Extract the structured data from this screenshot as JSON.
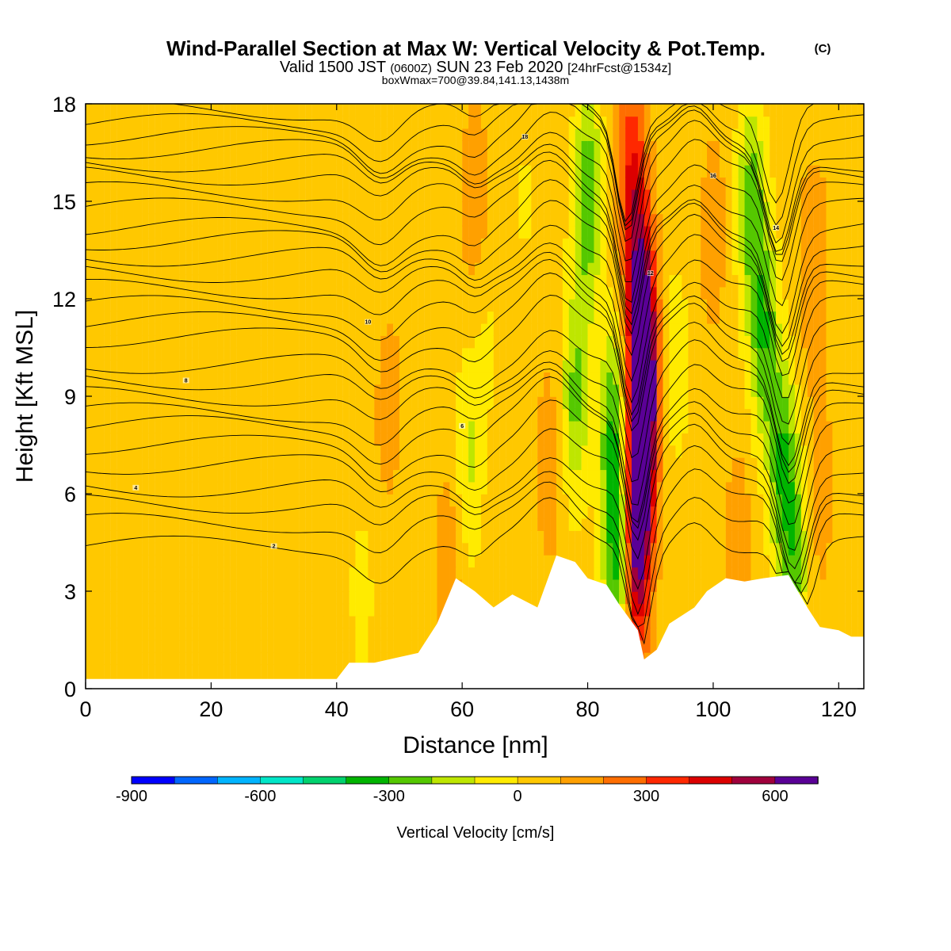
{
  "header": {
    "title": "Wind-Parallel Section at Max W: Vertical Velocity & Pot.Temp.",
    "copyright": "(C)",
    "subtitle_main": "Valid 1500 JST",
    "subtitle_utc": "(0600Z)",
    "subtitle_date": "SUN 23 Feb 2020",
    "subtitle_fcst": "[24hrFcst@1534z]",
    "box_info": "boxWmax=700@39.84,141.13,1438m"
  },
  "chart_data": {
    "type": "heatmap",
    "xlabel": "Distance [nm]",
    "ylabel": "Height [Kft MSL]",
    "xlim": [
      0,
      124
    ],
    "ylim": [
      0,
      18
    ],
    "xticks": [
      "0",
      "20",
      "40",
      "60",
      "80",
      "100",
      "120"
    ],
    "yticks": [
      "0",
      "3",
      "6",
      "9",
      "12",
      "15",
      "18"
    ],
    "xtick_values": [
      0,
      20,
      40,
      60,
      80,
      100,
      120
    ],
    "ytick_values": [
      0,
      3,
      6,
      9,
      12,
      15,
      18
    ],
    "colorbar": {
      "label": "Vertical Velocity [cm/s]",
      "levels": [
        -900,
        -800,
        -700,
        -600,
        -500,
        -400,
        -300,
        -200,
        -100,
        0,
        100,
        200,
        300,
        400,
        500,
        600,
        700
      ],
      "colors": [
        "#0000ff",
        "#0066ff",
        "#00b4ff",
        "#00e6c8",
        "#00d26e",
        "#00b400",
        "#55c800",
        "#bee600",
        "#ffeb00",
        "#ffc800",
        "#ffa000",
        "#ff6e00",
        "#ff2800",
        "#dc0000",
        "#a0003c",
        "#5a0096"
      ],
      "tick_labels": [
        "-900",
        "-600",
        "-300",
        "0",
        "300",
        "600"
      ],
      "tick_values": [
        -900,
        -600,
        -300,
        0,
        300,
        600
      ]
    },
    "background_w": 50,
    "vertical_velocity_features": [
      {
        "x": 36,
        "z": 11,
        "w": -30
      },
      {
        "x": 46,
        "z": 12,
        "w": -60
      },
      {
        "x": 44,
        "z": 3,
        "w": -80
      },
      {
        "x": 48,
        "z": 9,
        "w": 120
      },
      {
        "x": 58,
        "z": 4,
        "w": 130
      },
      {
        "x": 62,
        "z": 15,
        "w": 130
      },
      {
        "x": 61,
        "z": 7,
        "w": -170
      },
      {
        "x": 64,
        "z": 11,
        "w": -70
      },
      {
        "x": 74,
        "z": 7,
        "w": 120
      },
      {
        "x": 70,
        "z": 15,
        "w": -60
      },
      {
        "x": 80,
        "z": 15,
        "w": -350
      },
      {
        "x": 78,
        "z": 9,
        "w": -280
      },
      {
        "x": 84,
        "z": 8,
        "w": -330
      },
      {
        "x": 85,
        "z": 4,
        "w": -440
      },
      {
        "x": 87,
        "z": 16,
        "w": 330
      },
      {
        "x": 88.5,
        "z": 12,
        "w": 480
      },
      {
        "x": 89,
        "z": 9,
        "w": 620
      },
      {
        "x": 88,
        "z": 6,
        "w": 600
      },
      {
        "x": 87.5,
        "z": 3,
        "w": 320
      },
      {
        "x": 94,
        "z": 10,
        "w": -120
      },
      {
        "x": 100,
        "z": 14,
        "w": 110
      },
      {
        "x": 104,
        "z": 4,
        "w": 140
      },
      {
        "x": 106,
        "z": 15,
        "w": -300
      },
      {
        "x": 108,
        "z": 11,
        "w": -330
      },
      {
        "x": 111,
        "z": 7,
        "w": -330
      },
      {
        "x": 113,
        "z": 4,
        "w": -260
      },
      {
        "x": 116,
        "z": 13,
        "w": 150
      },
      {
        "x": 117,
        "z": 6,
        "w": 120
      },
      {
        "x": 121,
        "z": 3,
        "w": -50
      }
    ],
    "terrain": [
      [
        0,
        0.3
      ],
      [
        30,
        0.3
      ],
      [
        40,
        0.3
      ],
      [
        42,
        0.8
      ],
      [
        46,
        0.8
      ],
      [
        53,
        1.1
      ],
      [
        56,
        2.0
      ],
      [
        59,
        3.4
      ],
      [
        62,
        3.0
      ],
      [
        65,
        2.5
      ],
      [
        68,
        2.9
      ],
      [
        72,
        2.5
      ],
      [
        75,
        4.1
      ],
      [
        78,
        3.9
      ],
      [
        80,
        3.4
      ],
      [
        83,
        3.2
      ],
      [
        85,
        2.6
      ],
      [
        88,
        1.8
      ],
      [
        89,
        0.9
      ],
      [
        91,
        1.2
      ],
      [
        93,
        2.0
      ],
      [
        97,
        2.5
      ],
      [
        99,
        3.0
      ],
      [
        102,
        3.4
      ],
      [
        105,
        3.3
      ],
      [
        108,
        3.4
      ],
      [
        112,
        3.5
      ],
      [
        115,
        2.5
      ],
      [
        117,
        1.9
      ],
      [
        120,
        1.8
      ],
      [
        122,
        1.6
      ],
      [
        124,
        1.6
      ]
    ],
    "theta_contours": {
      "labels": [
        "2",
        "4",
        "6",
        "8",
        "10",
        "12",
        "14",
        "16",
        "18"
      ],
      "left_heights": [
        4.4,
        5.1,
        5.7,
        6.2,
        6.9,
        7.5,
        8.1,
        8.5,
        9.0,
        9.5,
        10.0,
        10.8,
        11.3,
        11.8,
        12.3,
        12.8,
        13.3,
        13.8,
        14.2,
        14.8,
        15.3,
        15.8,
        16.2,
        16.6,
        17.0,
        17.4,
        17.8
      ]
    }
  }
}
